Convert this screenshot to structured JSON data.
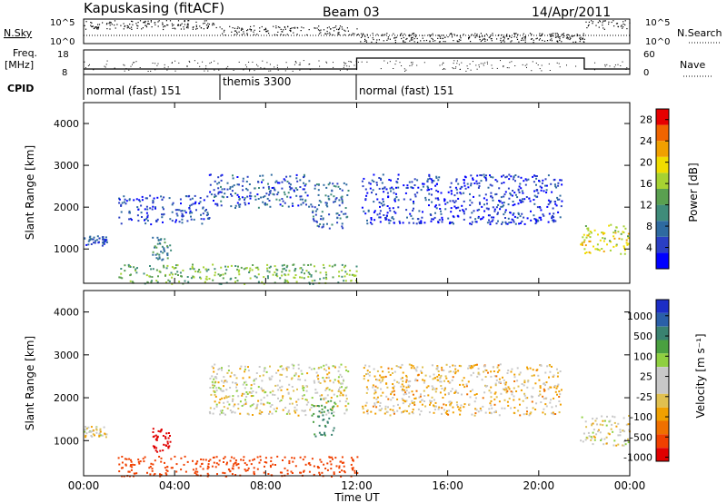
{
  "header": {
    "station": "Kapuskasing (fitACF)",
    "beam": "Beam 03",
    "date": "14/Apr/2011"
  },
  "strip_labels": {
    "nsky": "N.Sky",
    "nsearch": "N.Search",
    "freq_line1": "Freq.",
    "freq_line2": "[MHz]",
    "nave": "Nave",
    "cpid": "CPID",
    "noise_ticks_left": [
      "10^5",
      "10^0"
    ],
    "noise_ticks_right": [
      "10^5",
      "10^0"
    ],
    "freq_ticks": [
      "18",
      "8"
    ],
    "nave_ticks": [
      "60",
      "0"
    ]
  },
  "cpid_segments": [
    "normal (fast) 151",
    "themis 3300",
    "normal (fast) 151"
  ],
  "panels": {
    "power_ylabel": "Slant Range [km]",
    "velocity_ylabel": "Slant Range [km]",
    "y_ticks": [
      "4000",
      "3000",
      "2000",
      "1000"
    ],
    "x_ticks": [
      "00:00",
      "04:00",
      "08:00",
      "12:00",
      "16:00",
      "20:00",
      "00:00"
    ],
    "xlabel": "Time UT"
  },
  "power_colorbar": {
    "label": "Power [dB]",
    "ticks": [
      "28",
      "24",
      "20",
      "16",
      "12",
      "8",
      "4"
    ],
    "colors": [
      "#0000ff",
      "#2a3fc4",
      "#2e6aa0",
      "#3f8c7a",
      "#5aa050",
      "#a6d232",
      "#f0dc00",
      "#f0a000",
      "#f06400",
      "#e60000"
    ]
  },
  "velocity_colorbar": {
    "label": "Velocity [m s⁻¹]",
    "ticks": [
      "1000",
      "500",
      "100",
      "25",
      "-25",
      "-100",
      "-500",
      "-1000"
    ],
    "colors": [
      "#1c2ec6",
      "#2a5fa8",
      "#3a8270",
      "#4aa040",
      "#8fd040",
      "#c8c8c8",
      "#c8c8c8",
      "#e0c050",
      "#f0a000",
      "#f07000",
      "#f04000",
      "#e00000"
    ]
  },
  "chart_data": [
    {
      "type": "heatmap",
      "title": "Power",
      "x_range_hours": [
        0,
        24
      ],
      "ylim_km": [
        180,
        4500
      ],
      "features": [
        {
          "kind": "band",
          "t": [
            0.0,
            1.0
          ],
          "range_km": [
            1100,
            1350
          ],
          "value_db": 6
        },
        {
          "kind": "band",
          "t": [
            1.5,
            5.5
          ],
          "range_km": [
            1600,
            2300
          ],
          "value_db": 5
        },
        {
          "kind": "band",
          "t": [
            5.5,
            10.0
          ],
          "range_km": [
            2000,
            2800
          ],
          "value_db": 6
        },
        {
          "kind": "band",
          "t": [
            10.0,
            11.6
          ],
          "range_km": [
            1500,
            2600
          ],
          "value_db": 7
        },
        {
          "kind": "band",
          "t": [
            3.0,
            3.8
          ],
          "range_km": [
            750,
            1300
          ],
          "value_db": 10
        },
        {
          "kind": "band",
          "t": [
            12.2,
            21.0
          ],
          "range_km": [
            1600,
            2800
          ],
          "value_db": 4
        },
        {
          "kind": "band",
          "t": [
            21.8,
            24.0
          ],
          "range_km": [
            900,
            1600
          ],
          "value_db": 18
        },
        {
          "kind": "band",
          "t": [
            1.5,
            12.0
          ],
          "range_km": [
            180,
            650
          ],
          "value_db": 14
        }
      ]
    },
    {
      "type": "heatmap",
      "title": "Velocity",
      "x_range_hours": [
        0,
        24
      ],
      "ylim_km": [
        180,
        4500
      ],
      "features": [
        {
          "kind": "band",
          "t": [
            0.0,
            1.0
          ],
          "range_km": [
            1100,
            1350
          ],
          "value_ms": 0
        },
        {
          "kind": "band",
          "t": [
            3.0,
            3.8
          ],
          "range_km": [
            750,
            1300
          ],
          "value_ms": -700
        },
        {
          "kind": "band",
          "t": [
            5.5,
            11.6
          ],
          "range_km": [
            1600,
            2800
          ],
          "value_ms": 0
        },
        {
          "kind": "band",
          "t": [
            10.0,
            11.0
          ],
          "range_km": [
            1100,
            2000
          ],
          "value_ms": 200
        },
        {
          "kind": "band",
          "t": [
            12.2,
            21.0
          ],
          "range_km": [
            1600,
            2800
          ],
          "value_ms": -40
        },
        {
          "kind": "band",
          "t": [
            21.8,
            24.0
          ],
          "range_km": [
            900,
            1600
          ],
          "value_ms": 0
        },
        {
          "kind": "band",
          "t": [
            1.5,
            12.0
          ],
          "range_km": [
            180,
            650
          ],
          "value_ms": -300
        }
      ]
    }
  ]
}
